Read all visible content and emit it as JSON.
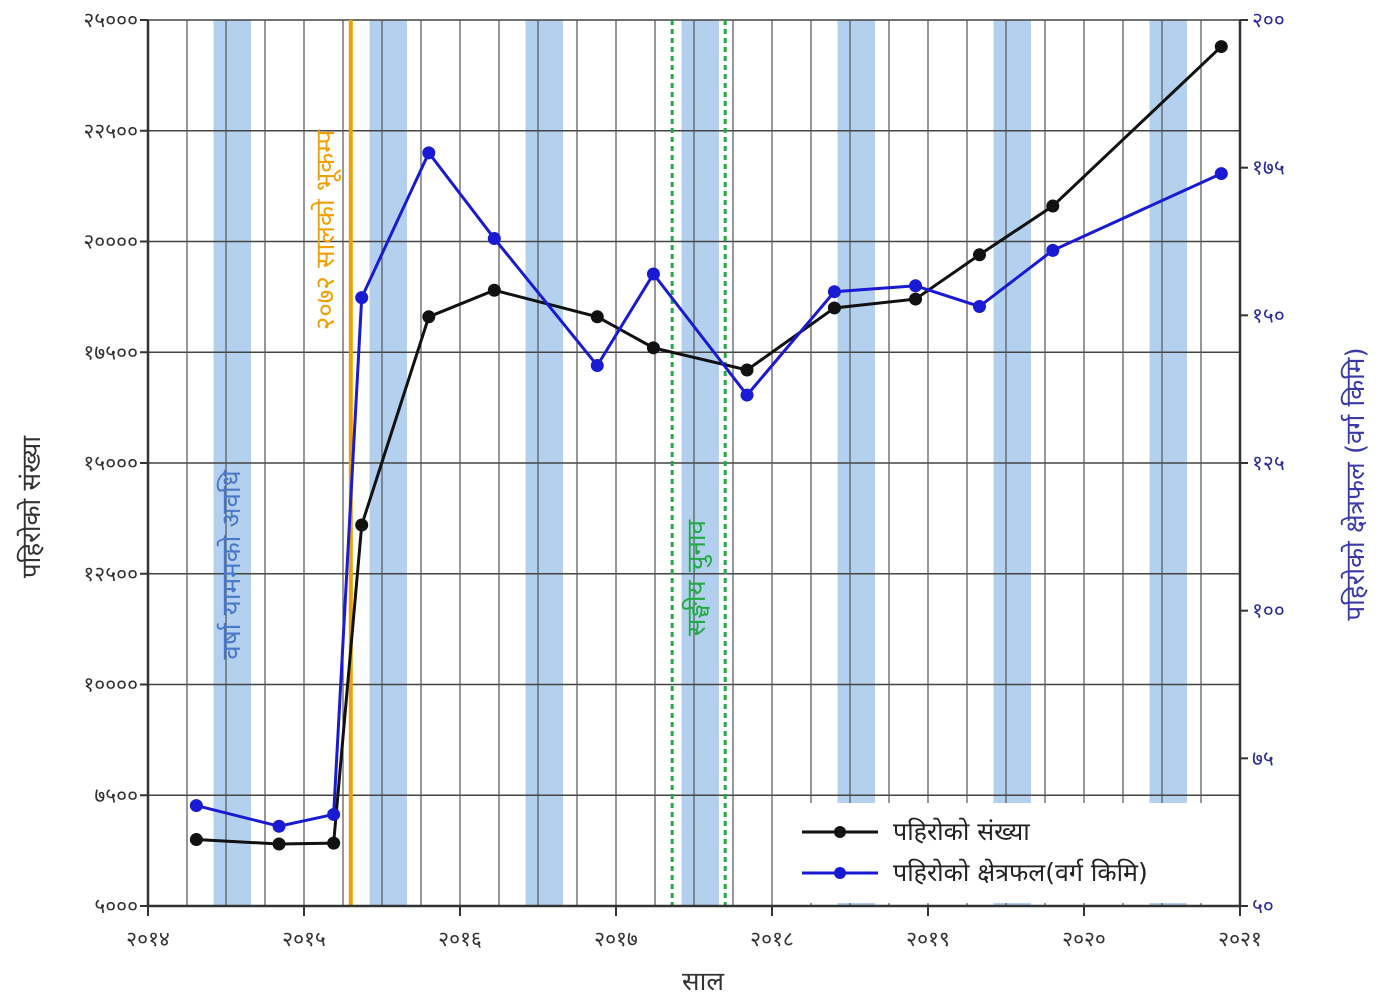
{
  "chart_data": {
    "type": "line",
    "xlabel": "साल",
    "ylabel_left": "पहिरोको संख्या",
    "ylabel_right": "पहिरोको क्षेत्रफल (वर्ग किमि)",
    "xlim": [
      2014,
      2021
    ],
    "ylim_left": [
      5000,
      25000
    ],
    "ylim_right": [
      50,
      200
    ],
    "x_ticks": [
      {
        "value": 2014,
        "label": "२०१४"
      },
      {
        "value": 2015,
        "label": "२०१५"
      },
      {
        "value": 2016,
        "label": "२०१६"
      },
      {
        "value": 2017,
        "label": "२०१७"
      },
      {
        "value": 2018,
        "label": "२०१८"
      },
      {
        "value": 2019,
        "label": "२०१९"
      },
      {
        "value": 2020,
        "label": "२०२०"
      },
      {
        "value": 2021,
        "label": "२०२१"
      }
    ],
    "y_ticks_left": [
      {
        "value": 5000,
        "label": "५०००"
      },
      {
        "value": 7500,
        "label": "७५००"
      },
      {
        "value": 10000,
        "label": "१००००"
      },
      {
        "value": 12500,
        "label": "१२५००"
      },
      {
        "value": 15000,
        "label": "१५०००"
      },
      {
        "value": 17500,
        "label": "१७५००"
      },
      {
        "value": 20000,
        "label": "२००००"
      },
      {
        "value": 22500,
        "label": "२२५००"
      },
      {
        "value": 25000,
        "label": "२५०००"
      }
    ],
    "y_ticks_right": [
      {
        "value": 50,
        "label": "५०"
      },
      {
        "value": 75,
        "label": "७५"
      },
      {
        "value": 100,
        "label": "१००"
      },
      {
        "value": 125,
        "label": "१२५"
      },
      {
        "value": 150,
        "label": "१५०"
      },
      {
        "value": 175,
        "label": "१७५"
      },
      {
        "value": 200,
        "label": "२००"
      }
    ],
    "grid": true,
    "series": [
      {
        "name": "पहिरोको संख्या",
        "axis": "left",
        "color": "#111111",
        "points": [
          [
            2014.31,
            6500
          ],
          [
            2014.84,
            6400
          ],
          [
            2015.19,
            6420
          ],
          [
            2015.37,
            13600
          ],
          [
            2015.8,
            18300
          ],
          [
            2016.22,
            18900
          ],
          [
            2016.88,
            18300
          ],
          [
            2017.24,
            17600
          ],
          [
            2017.84,
            17100
          ],
          [
            2018.4,
            18500
          ],
          [
            2018.92,
            18700
          ],
          [
            2019.33,
            19700
          ],
          [
            2019.8,
            20800
          ],
          [
            2020.88,
            24400
          ]
        ]
      },
      {
        "name": "पहिरोको क्षेत्रफल(वर्ग किमि)",
        "axis": "right",
        "color": "#1a1ad4",
        "points": [
          [
            2014.31,
            67
          ],
          [
            2014.84,
            63.5
          ],
          [
            2015.19,
            65.5
          ],
          [
            2015.37,
            153
          ],
          [
            2015.8,
            177.5
          ],
          [
            2016.22,
            163
          ],
          [
            2016.88,
            141.5
          ],
          [
            2017.24,
            157
          ],
          [
            2017.84,
            136.5
          ],
          [
            2018.4,
            154
          ],
          [
            2018.92,
            155
          ],
          [
            2019.33,
            151.5
          ],
          [
            2019.8,
            161
          ],
          [
            2020.88,
            174
          ]
        ]
      }
    ],
    "shaded_bands": [
      [
        2014.42,
        2014.66
      ],
      [
        2015.42,
        2015.66
      ],
      [
        2016.42,
        2016.66
      ],
      [
        2017.42,
        2017.66
      ],
      [
        2018.42,
        2018.66
      ],
      [
        2019.42,
        2019.66
      ],
      [
        2020.42,
        2020.66
      ]
    ],
    "shaded_band_color": "#b3d1ee",
    "annotations": [
      {
        "id": "monsoon",
        "text": "वर्षा याममको अवधि",
        "color": "#4a78c8"
      },
      {
        "id": "earthquake",
        "text": "२०७२ सालको भूकम्प",
        "color": "#f0a000",
        "x": 2015.3
      },
      {
        "id": "election",
        "text": "सङ्घीय चुनाव",
        "color": "#22aa44",
        "x_start": 2017.36,
        "x_end": 2017.7
      }
    ],
    "legend": {
      "position": "bottom-right"
    }
  }
}
